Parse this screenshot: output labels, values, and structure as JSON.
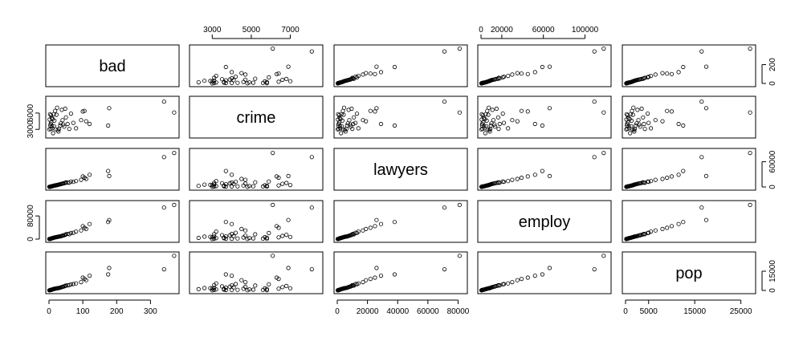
{
  "chart_data": {
    "type": "scatter",
    "variables": [
      "bad",
      "crime",
      "lawyers",
      "employ",
      "pop"
    ],
    "axes": {
      "bad": {
        "range": [
          0,
          375
        ],
        "ticks": [
          0,
          100,
          200,
          300
        ],
        "tick_labels": [
          "0",
          "100",
          "200",
          "300"
        ]
      },
      "crime": {
        "range": [
          2000,
          8500
        ],
        "ticks": [
          3000,
          5000,
          7000
        ],
        "tick_labels": [
          "3000",
          "5000",
          "7000"
        ],
        "left_ticks": [
          3000,
          6000
        ],
        "left_tick_labels": [
          "3000",
          "6000"
        ]
      },
      "lawyers": {
        "range": [
          0,
          84000
        ],
        "ticks": [
          0,
          20000,
          40000,
          60000,
          80000
        ],
        "tick_labels": [
          "0",
          "20000",
          "40000",
          "60000",
          "80000"
        ]
      },
      "employ": {
        "range": [
          0,
          122000
        ],
        "ticks": [
          0,
          20000,
          60000,
          100000
        ],
        "tick_labels": [
          "0",
          "20000",
          "60000",
          "100000"
        ],
        "left_ticks": [
          0,
          80000
        ],
        "left_tick_labels": [
          "0",
          "80000"
        ]
      },
      "pop": {
        "range": [
          0,
          27500
        ],
        "ticks": [
          0,
          5000,
          15000,
          25000
        ],
        "tick_labels": [
          "0",
          "5000",
          "15000",
          "25000"
        ]
      }
    },
    "right_axes": {
      "bad": {
        "ticks": [
          0,
          200
        ],
        "tick_labels": [
          "0",
          "200"
        ]
      },
      "lawyers": {
        "ticks": [
          0,
          60000
        ],
        "tick_labels": [
          "0",
          "60000"
        ]
      },
      "pop": {
        "ticks": [
          0,
          15000
        ],
        "tick_labels": [
          "0",
          "15000"
        ]
      }
    },
    "points": {
      "bad": [
        370,
        340,
        178,
        175,
        120,
        110,
        105,
        100,
        95,
        80,
        72,
        65,
        60,
        55,
        50,
        48,
        45,
        42,
        40,
        38,
        35,
        33,
        30,
        28,
        26,
        24,
        22,
        20,
        18,
        16,
        15,
        14,
        12,
        11,
        10,
        9,
        8,
        7,
        6,
        5,
        5,
        4,
        3,
        2,
        1
      ],
      "crime": [
        6100,
        8100,
        6900,
        3700,
        4000,
        4500,
        6400,
        6300,
        4700,
        3200,
        4200,
        5900,
        3100,
        4000,
        5200,
        6800,
        3500,
        3900,
        4700,
        6600,
        4100,
        3700,
        3100,
        2600,
        2900,
        7000,
        5700,
        3000,
        6400,
        4600,
        3600,
        5800,
        2300,
        4900,
        3200,
        3600,
        5100,
        4300,
        5600,
        3100,
        4000,
        3700,
        5800,
        4800,
        3000
      ],
      "lawyers": [
        81000,
        71000,
        26000,
        38000,
        29000,
        19000,
        22000,
        25000,
        17000,
        14000,
        12000,
        13000,
        10000,
        10500,
        11000,
        9500,
        9000,
        8600,
        8000,
        7500,
        7000,
        6500,
        6000,
        5500,
        5000,
        4500,
        4200,
        4000,
        3700,
        3400,
        3000,
        2800,
        2500,
        2200,
        2000,
        1800,
        1600,
        1400,
        1200,
        1000,
        900,
        800,
        600,
        400,
        300
      ],
      "employ": [
        118000,
        109000,
        66000,
        59000,
        52000,
        35000,
        39000,
        45000,
        30000,
        26000,
        22000,
        21000,
        17000,
        18000,
        16500,
        15000,
        13500,
        13000,
        12000,
        11000,
        10000,
        9500,
        9000,
        8500,
        8000,
        7500,
        7000,
        6500,
        6000,
        5500,
        5000,
        4600,
        4200,
        3800,
        3400,
        3000,
        2600,
        2200,
        1800,
        1500,
        1200,
        1000,
        800,
        600,
        400
      ],
      "pop": [
        27000,
        16500,
        17500,
        12500,
        11500,
        8000,
        9000,
        10000,
        6500,
        5500,
        5000,
        4800,
        4200,
        4000,
        3800,
        3500,
        3200,
        3000,
        2800,
        2600,
        2400,
        2200,
        2000,
        1900,
        1800,
        1700,
        1600,
        1500,
        1400,
        1300,
        1200,
        1100,
        1000,
        900,
        800,
        700,
        600,
        500,
        450,
        400,
        350,
        300,
        250,
        200,
        150
      ]
    },
    "title": "",
    "grid": false
  }
}
